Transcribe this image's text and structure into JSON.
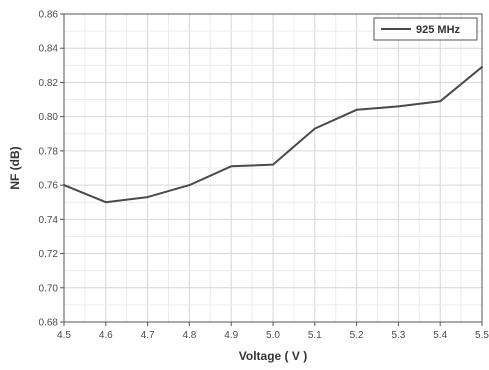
{
  "chart_data": {
    "type": "line",
    "xlabel": "Voltage ( V )",
    "ylabel": "NF (dB)",
    "xlim": [
      4.5,
      5.5
    ],
    "ylim": [
      0.68,
      0.86
    ],
    "x_ticks": [
      "4.5",
      "4.6",
      "4.7",
      "4.8",
      "4.9",
      "5.0",
      "5.1",
      "5.2",
      "5.3",
      "5.4",
      "5.5"
    ],
    "y_ticks": [
      "0.68",
      "0.70",
      "0.72",
      "0.74",
      "0.76",
      "0.78",
      "0.80",
      "0.82",
      "0.84",
      "0.86"
    ],
    "grid": true,
    "legend_position": "top-right",
    "series": [
      {
        "name": "925 MHz",
        "color": "#4a4a4a",
        "x": [
          4.5,
          4.6,
          4.7,
          4.8,
          4.9,
          5.0,
          5.1,
          5.2,
          5.3,
          5.4,
          5.5
        ],
        "y": [
          0.76,
          0.75,
          0.753,
          0.76,
          0.771,
          0.772,
          0.793,
          0.804,
          0.806,
          0.809,
          0.829
        ]
      }
    ]
  }
}
